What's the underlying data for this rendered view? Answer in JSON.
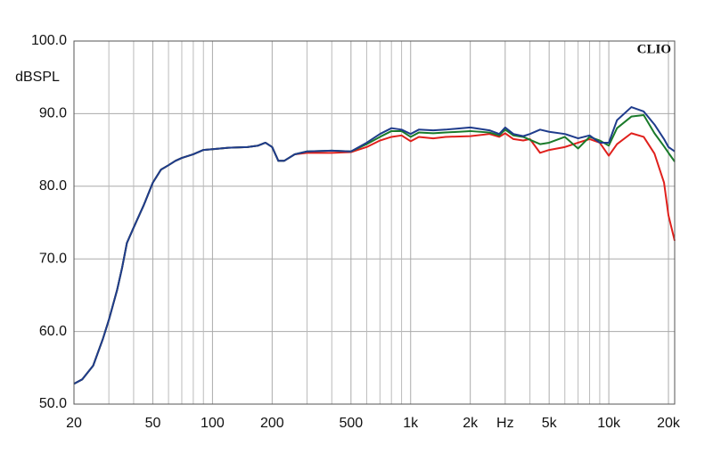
{
  "chart_data": {
    "type": "line",
    "ylabel": "dBSPL",
    "watermark": "CLIO",
    "xscale": "log",
    "grid": true,
    "xlim": [
      20,
      21500
    ],
    "ylim": [
      50,
      100
    ],
    "xticks": [
      20,
      50,
      100,
      200,
      500,
      {
        "value": 1000,
        "label": "1k"
      },
      {
        "value": 2000,
        "label": "2k"
      },
      {
        "value": 3000,
        "label": "Hz"
      },
      {
        "value": 5000,
        "label": "5k"
      },
      {
        "value": 10000,
        "label": "10k"
      },
      {
        "value": 20000,
        "label": "20k"
      }
    ],
    "xminor_ticks": [
      30,
      40,
      60,
      70,
      80,
      90,
      300,
      400,
      600,
      700,
      800,
      900,
      4000,
      6000,
      7000,
      8000,
      9000
    ],
    "yticks": [
      {
        "value": 50,
        "label": "50.0"
      },
      {
        "value": 60,
        "label": "60.0"
      },
      {
        "value": 70,
        "label": "70.0"
      },
      {
        "value": 80,
        "label": "80.0"
      },
      {
        "value": 90,
        "label": "90.0"
      },
      {
        "value": 100,
        "label": "100.0"
      }
    ],
    "x": [
      20,
      22,
      25,
      28,
      30,
      33,
      35,
      37,
      40,
      45,
      50,
      55,
      60,
      65,
      70,
      80,
      90,
      100,
      120,
      150,
      170,
      185,
      200,
      215,
      230,
      260,
      300,
      400,
      500,
      600,
      700,
      800,
      900,
      1000,
      1100,
      1300,
      1500,
      2000,
      2500,
      2800,
      3000,
      3300,
      3700,
      4000,
      4500,
      5000,
      6000,
      7000,
      8000,
      9000,
      10000,
      11000,
      13000,
      15000,
      17000,
      19000,
      20000,
      21500
    ],
    "series": [
      {
        "color": "#e0201c",
        "values": [
          52.8,
          53.4,
          55.3,
          59,
          61.6,
          65.7,
          68.8,
          72.2,
          74.3,
          77.4,
          80.5,
          82.3,
          82.9,
          83.5,
          83.9,
          84.4,
          85,
          85.1,
          85.3,
          85.4,
          85.6,
          86,
          85.4,
          83.5,
          83.5,
          84.4,
          84.6,
          84.6,
          84.7,
          85.4,
          86.3,
          86.8,
          87.0,
          86.2,
          86.8,
          86.6,
          86.8,
          86.9,
          87.2,
          86.8,
          87.3,
          86.5,
          86.3,
          86.5,
          84.6,
          85.0,
          85.4,
          86.0,
          86.5,
          86.0,
          84.2,
          85.8,
          87.3,
          86.8,
          84.5,
          80.5,
          76,
          72.5
        ]
      },
      {
        "color": "#1a7a2a",
        "values": [
          52.8,
          53.4,
          55.3,
          59,
          61.6,
          65.7,
          68.8,
          72.2,
          74.3,
          77.4,
          80.5,
          82.3,
          82.9,
          83.5,
          83.9,
          84.4,
          85,
          85.1,
          85.3,
          85.4,
          85.6,
          86,
          85.4,
          83.5,
          83.5,
          84.4,
          84.8,
          84.9,
          84.8,
          85.8,
          86.8,
          87.6,
          87.6,
          86.8,
          87.4,
          87.3,
          87.4,
          87.6,
          87.4,
          87.0,
          87.8,
          87.0,
          86.8,
          86.4,
          85.8,
          86.0,
          86.8,
          85.2,
          86.8,
          86.3,
          85.6,
          88.0,
          89.6,
          89.8,
          87.3,
          85.5,
          84.6,
          83.4
        ]
      },
      {
        "color": "#1f3c8c",
        "values": [
          52.8,
          53.4,
          55.3,
          59,
          61.6,
          65.7,
          68.8,
          72.2,
          74.3,
          77.4,
          80.5,
          82.3,
          82.9,
          83.5,
          83.9,
          84.4,
          85,
          85.1,
          85.3,
          85.4,
          85.6,
          86,
          85.4,
          83.5,
          83.5,
          84.4,
          84.8,
          84.9,
          84.8,
          86,
          87.2,
          88,
          87.8,
          87.2,
          87.8,
          87.7,
          87.8,
          88.1,
          87.7,
          87.2,
          88.1,
          87.2,
          86.9,
          87.2,
          87.8,
          87.5,
          87.2,
          86.6,
          87,
          86,
          86,
          89.1,
          90.9,
          90.3,
          88.5,
          86.5,
          85.4,
          84.8
        ]
      }
    ]
  }
}
